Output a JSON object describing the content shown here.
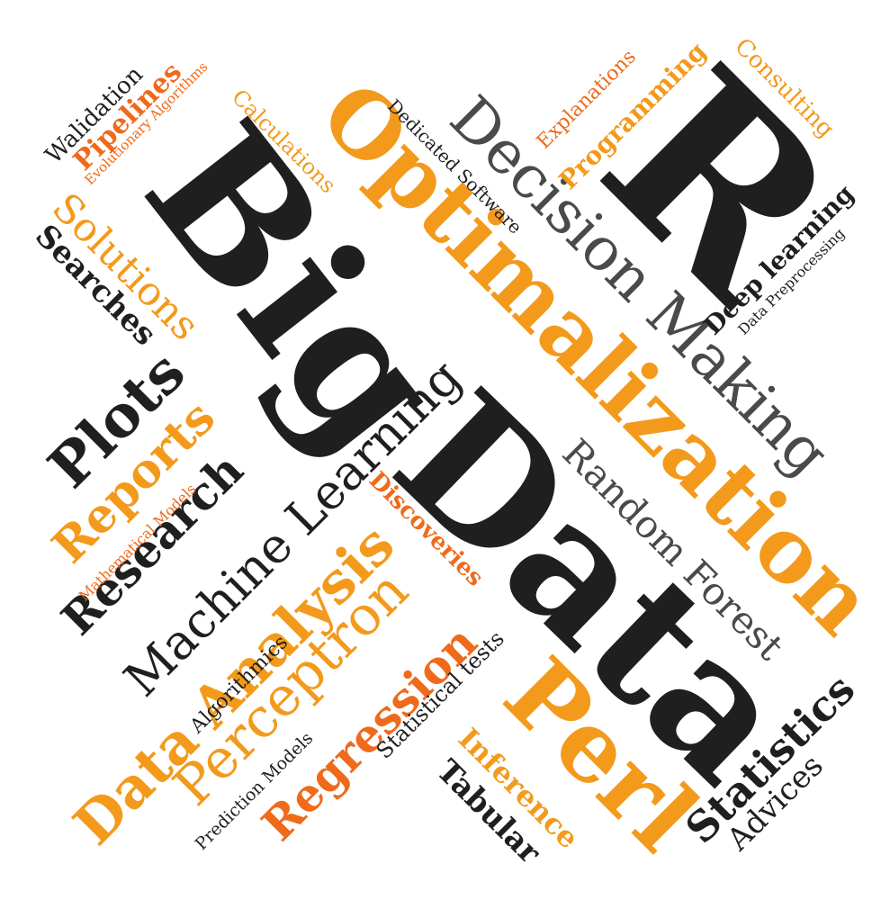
{
  "palette": {
    "black": "#1f1f1f",
    "gray": "#4a4a4a",
    "orange": "#f39a1c",
    "red_orange": "#ef6a1a"
  },
  "words": {
    "big": "Big",
    "data": "Data",
    "r": "R",
    "optimalization": "Optimalization",
    "decision_making": "Decision Making",
    "machine_learning": "Machine Learning",
    "perl": "Perl",
    "data_analysis": "Data Analysis",
    "perceptron": "Perceptron",
    "research": "Research",
    "plots": "Plots",
    "reports": "Reports",
    "solutions": "Solutions",
    "searches": "Searches",
    "pipelines": "Pipelines",
    "walidation": "Walidation",
    "evolutionary_algorithms": "Evolutionary Algorithms",
    "calculations": "Calculations",
    "dedicated_software": "Dedicated Software",
    "explanations": "Explanations",
    "programming": "Programming",
    "consulting": "Consulting",
    "deep_learning": "Deep learning",
    "data_preprocessing": "Data Preprocessing",
    "random_forest": "Random Forest",
    "discoveries": "Discoveries",
    "mathematical_models": "Mathematical Models",
    "algorithmics": "Algorithmics",
    "regression": "Regression",
    "statistical_tests": "Statistical tests",
    "inference": "Inference",
    "tabular": "Tabular",
    "prediction_models": "Prediction Models",
    "statistics": "Statistics",
    "advices": "Advices"
  }
}
